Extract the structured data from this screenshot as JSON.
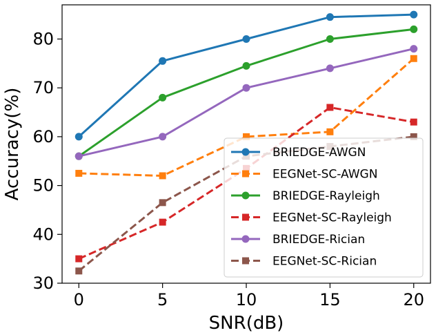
{
  "chart_data": {
    "type": "line",
    "title": "",
    "xlabel": "SNR(dB)",
    "ylabel": "Accuracy(%)",
    "x": [
      0,
      5,
      10,
      15,
      20
    ],
    "xlim": [
      -1,
      21
    ],
    "ylim": [
      30,
      87
    ],
    "xticks": [
      0,
      5,
      10,
      15,
      20
    ],
    "yticks": [
      30,
      40,
      50,
      60,
      70,
      80
    ],
    "grid": false,
    "legend_position": "lower-right",
    "series": [
      {
        "name": "BRIEDGE-AWGN",
        "color": "#1f77b4",
        "linestyle": "solid",
        "marker": "circle",
        "values": [
          60,
          75.5,
          80,
          84.5,
          85
        ]
      },
      {
        "name": "EEGNet-SC-AWGN",
        "color": "#ff7f0e",
        "linestyle": "dashed",
        "marker": "square",
        "values": [
          52.5,
          52,
          60,
          61,
          76
        ]
      },
      {
        "name": "BRIEDGE-Rayleigh",
        "color": "#2ca02c",
        "linestyle": "solid",
        "marker": "circle",
        "values": [
          56,
          68,
          74.5,
          80,
          82
        ]
      },
      {
        "name": "EEGNet-SC-Rayleigh",
        "color": "#d62728",
        "linestyle": "dashed",
        "marker": "square",
        "values": [
          35,
          42.5,
          53.5,
          66,
          63
        ]
      },
      {
        "name": "BRIEDGE-Rician",
        "color": "#9467bd",
        "linestyle": "solid",
        "marker": "circle",
        "values": [
          56,
          60,
          70,
          74,
          78
        ]
      },
      {
        "name": "EEGNet-SC-Rician",
        "color": "#8c564b",
        "linestyle": "dashed",
        "marker": "square",
        "values": [
          32.5,
          46.5,
          56,
          58,
          60
        ]
      }
    ]
  }
}
